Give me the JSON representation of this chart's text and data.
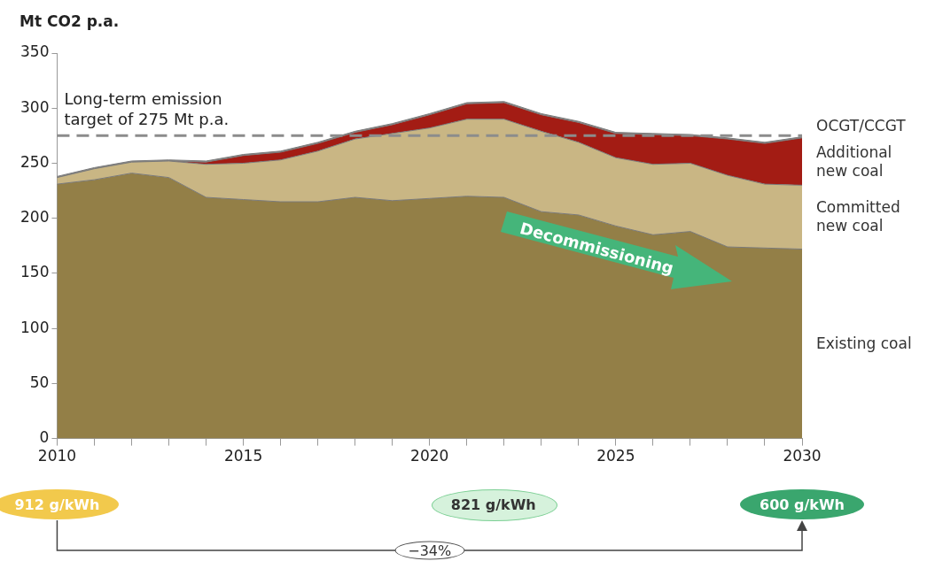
{
  "chart_data": {
    "type": "area",
    "stacked": true,
    "ylabel": "Mt CO2 p.a.",
    "x": [
      2010,
      2011,
      2012,
      2013,
      2014,
      2015,
      2016,
      2017,
      2018,
      2019,
      2020,
      2021,
      2022,
      2023,
      2024,
      2025,
      2026,
      2027,
      2028,
      2029,
      2030
    ],
    "series": [
      {
        "name": "Existing coal",
        "color": "#937f47",
        "values": [
          231,
          235,
          241,
          237,
          219,
          217,
          215,
          215,
          219,
          216,
          218,
          220,
          219,
          206,
          203,
          193,
          185,
          188,
          174,
          173,
          172
        ]
      },
      {
        "name": "Committed new coal",
        "color": "#c9b684",
        "values": [
          6,
          10,
          10,
          15,
          30,
          33,
          38,
          46,
          53,
          61,
          64,
          70,
          71,
          73,
          66,
          62,
          64,
          62,
          65,
          58,
          58
        ]
      },
      {
        "name": "Additional new coal",
        "color": "#a31c14",
        "values": [
          0,
          0,
          0,
          0,
          2,
          7,
          7,
          7,
          6,
          8,
          12,
          14,
          15,
          15,
          18,
          22,
          27,
          25,
          33,
          37,
          43
        ]
      },
      {
        "name": "OCGT/CCGT",
        "color": "#8c8c8c",
        "values": [
          1,
          1,
          1,
          1,
          1,
          1,
          1,
          1,
          1,
          1,
          1,
          1,
          1,
          1,
          1,
          1,
          1,
          1,
          1,
          1,
          1
        ]
      }
    ],
    "xlim": [
      2010,
      2030
    ],
    "xticks": [
      2010,
      {
        "value": 2011,
        "label": null
      },
      {
        "value": 2012,
        "label": null
      },
      {
        "value": 2013,
        "label": null
      },
      {
        "value": 2014,
        "label": null
      },
      2015,
      {
        "value": 2016,
        "label": null
      },
      {
        "value": 2017,
        "label": null
      },
      {
        "value": 2018,
        "label": null
      },
      {
        "value": 2019,
        "label": null
      },
      2020,
      {
        "value": 2021,
        "label": null
      },
      {
        "value": 2022,
        "label": null
      },
      {
        "value": 2023,
        "label": null
      },
      {
        "value": 2024,
        "label": null
      },
      2025,
      {
        "value": 2026,
        "label": null
      },
      {
        "value": 2027,
        "label": null
      },
      {
        "value": 2028,
        "label": null
      },
      {
        "value": 2029,
        "label": null
      },
      2030
    ],
    "ylim": [
      0,
      350
    ],
    "yticks": [
      0,
      50,
      100,
      150,
      200,
      250,
      300,
      350
    ],
    "grid": false,
    "legend": false,
    "ref_lines": [
      {
        "axis": "y",
        "value": 275,
        "label": "Long-term emission target of 275 Mt p.a.",
        "color": "#8c8c8c",
        "line_style": "dashed"
      }
    ],
    "annotations": [
      "Decommissioning",
      "912 g/kWh",
      "821 g/kWh",
      "600 g/kWh",
      "−34%"
    ]
  }
}
